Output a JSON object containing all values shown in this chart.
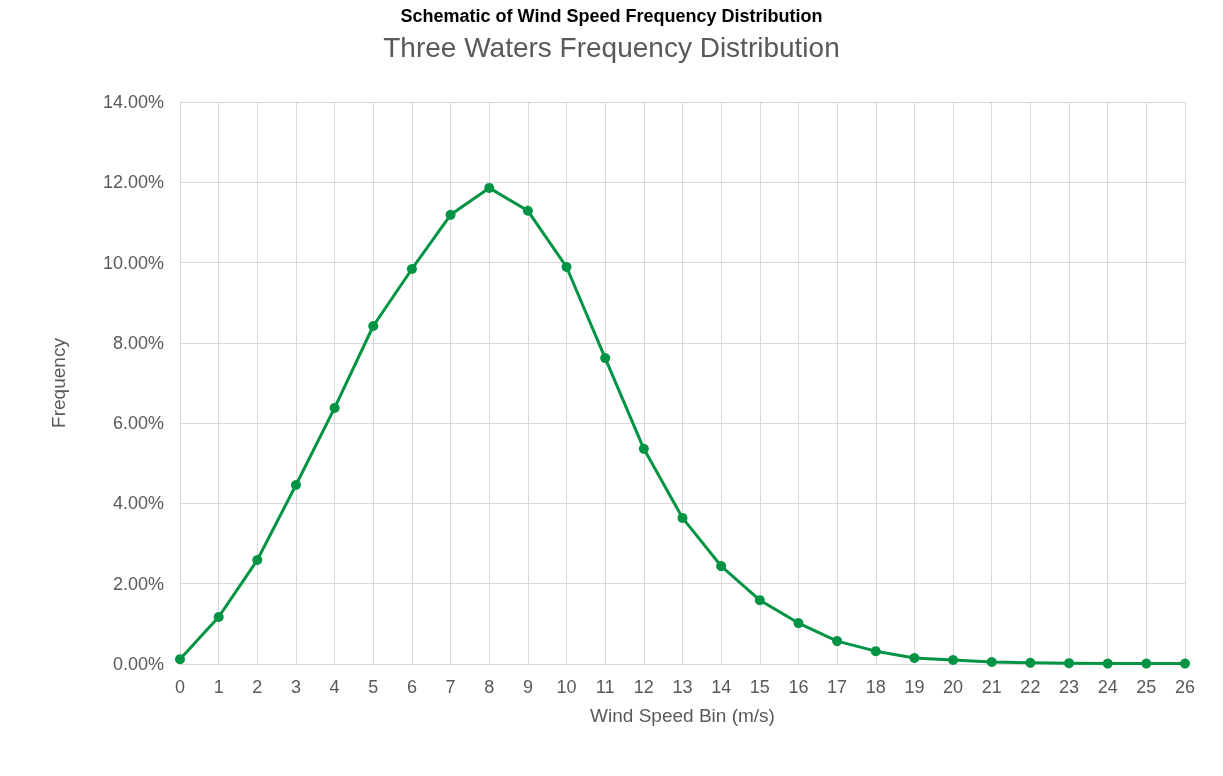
{
  "chart_data": {
    "type": "line",
    "title": "Schematic of Wind Speed Frequency Distribution",
    "subtitle": "Three Waters Frequency Distribution",
    "xlabel": "Wind Speed Bin (m/s)",
    "ylabel": "Frequency",
    "x": [
      0,
      1,
      2,
      3,
      4,
      5,
      6,
      7,
      8,
      9,
      10,
      11,
      12,
      13,
      14,
      15,
      16,
      17,
      18,
      19,
      20,
      21,
      22,
      23,
      24,
      25,
      26
    ],
    "series": [
      {
        "color": "#009444",
        "values": [
          0.12,
          1.17,
          2.59,
          4.46,
          6.38,
          8.42,
          9.84,
          11.19,
          11.86,
          11.29,
          9.89,
          7.62,
          5.36,
          3.64,
          2.44,
          1.59,
          1.02,
          0.57,
          0.32,
          0.15,
          0.1,
          0.05,
          0.03,
          0.02,
          0.01,
          0.01,
          0.01
        ]
      }
    ],
    "xlim": [
      0,
      26
    ],
    "xticks": [
      0,
      1,
      2,
      3,
      4,
      5,
      6,
      7,
      8,
      9,
      10,
      11,
      12,
      13,
      14,
      15,
      16,
      17,
      18,
      19,
      20,
      21,
      22,
      23,
      24,
      25,
      26
    ],
    "ylim": [
      0,
      14
    ],
    "yticks": [
      {
        "value": 0,
        "label": "0.00%"
      },
      {
        "value": 2,
        "label": "2.00%"
      },
      {
        "value": 4,
        "label": "4.00%"
      },
      {
        "value": 6,
        "label": "6.00%"
      },
      {
        "value": 8,
        "label": "8.00%"
      },
      {
        "value": 10,
        "label": "10.00%"
      },
      {
        "value": 12,
        "label": "12.00%"
      },
      {
        "value": 14,
        "label": "14.00%"
      }
    ],
    "grid": true,
    "marker": "circle",
    "line_style": "solid"
  }
}
